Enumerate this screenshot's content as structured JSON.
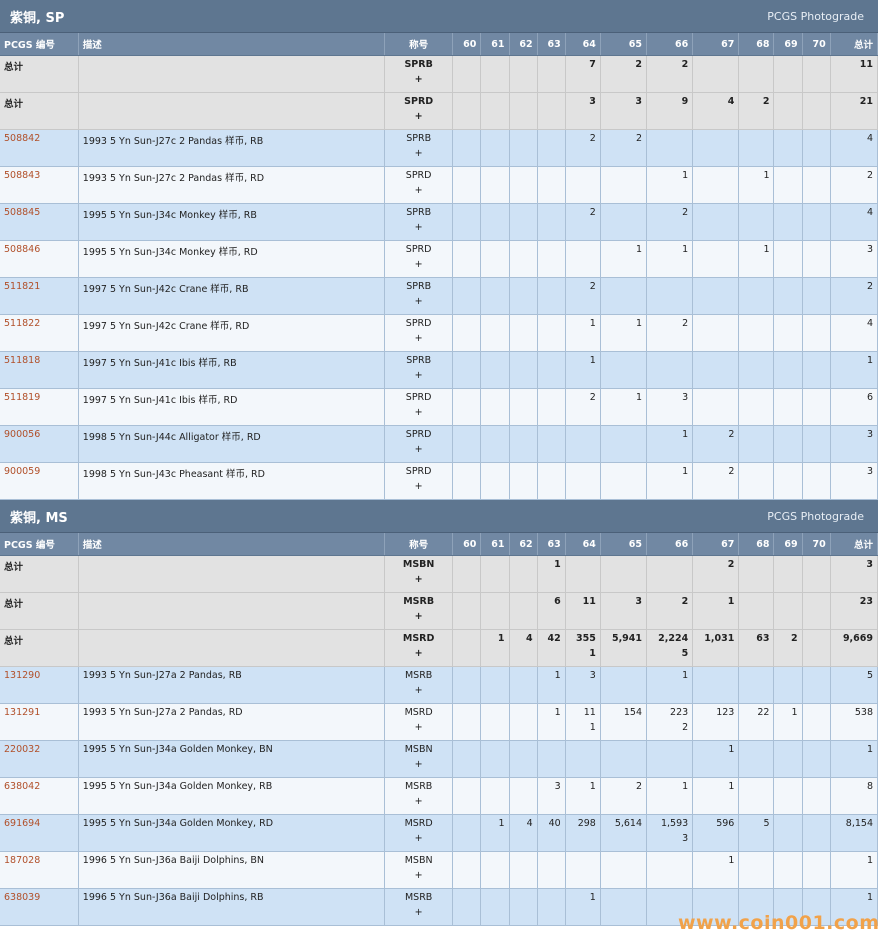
{
  "columns": [
    "PCGS 编号",
    "描述",
    "称号",
    "60",
    "61",
    "62",
    "63",
    "64",
    "65",
    "66",
    "67",
    "68",
    "69",
    "70",
    "总计"
  ],
  "sections": [
    {
      "title": "紫铜, SP",
      "link": "PCGS Photograde",
      "rows": [
        {
          "type": "total",
          "pcgs": "总计",
          "desc": "",
          "grade": "SPRB\n+",
          "v": [
            "",
            "",
            "",
            "",
            "7",
            "2",
            "2",
            "",
            "",
            "",
            "",
            ""
          ],
          "total": "11"
        },
        {
          "type": "total",
          "pcgs": "总计",
          "desc": "",
          "grade": "SPRD\n+",
          "v": [
            "",
            "",
            "",
            "",
            "3",
            "3",
            "9",
            "4",
            "2",
            "",
            "",
            ""
          ],
          "total": "21"
        },
        {
          "type": "alt",
          "pcgs": "508842",
          "desc": "1993 5 Yn Sun-J27c 2 Pandas 样币, RB",
          "grade": "SPRB\n+",
          "v": [
            "",
            "",
            "",
            "",
            "2",
            "2",
            "",
            "",
            "",
            "",
            ""
          ],
          "total": "4"
        },
        {
          "type": "plain",
          "pcgs": "508843",
          "desc": "1993 5 Yn Sun-J27c 2 Pandas 样币, RD",
          "grade": "SPRD\n+",
          "v": [
            "",
            "",
            "",
            "",
            "",
            "",
            "1",
            "",
            "1",
            "",
            ""
          ],
          "total": "2"
        },
        {
          "type": "alt",
          "pcgs": "508845",
          "desc": "1995 5 Yn Sun-J34c Monkey 样币, RB",
          "grade": "SPRB\n+",
          "v": [
            "",
            "",
            "",
            "",
            "2",
            "",
            "2",
            "",
            "",
            "",
            ""
          ],
          "total": "4"
        },
        {
          "type": "plain",
          "pcgs": "508846",
          "desc": "1995 5 Yn Sun-J34c Monkey 样币, RD",
          "grade": "SPRD\n+",
          "v": [
            "",
            "",
            "",
            "",
            "",
            "1",
            "1",
            "",
            "1",
            "",
            ""
          ],
          "total": "3"
        },
        {
          "type": "alt",
          "pcgs": "511821",
          "desc": "1997 5 Yn Sun-J42c Crane 样币, RB",
          "grade": "SPRB\n+",
          "v": [
            "",
            "",
            "",
            "",
            "2",
            "",
            "",
            "",
            "",
            "",
            ""
          ],
          "total": "2"
        },
        {
          "type": "plain",
          "pcgs": "511822",
          "desc": "1997 5 Yn Sun-J42c Crane 样币, RD",
          "grade": "SPRD\n+",
          "v": [
            "",
            "",
            "",
            "",
            "1",
            "1",
            "2",
            "",
            "",
            "",
            ""
          ],
          "total": "4"
        },
        {
          "type": "alt",
          "pcgs": "511818",
          "desc": "1997 5 Yn Sun-J41c Ibis 样币, RB",
          "grade": "SPRB\n+",
          "v": [
            "",
            "",
            "",
            "",
            "1",
            "",
            "",
            "",
            "",
            "",
            ""
          ],
          "total": "1"
        },
        {
          "type": "plain",
          "pcgs": "511819",
          "desc": "1997 5 Yn Sun-J41c Ibis 样币, RD",
          "grade": "SPRD\n+",
          "v": [
            "",
            "",
            "",
            "",
            "2",
            "1",
            "3",
            "",
            "",
            "",
            ""
          ],
          "total": "6"
        },
        {
          "type": "alt",
          "pcgs": "900056",
          "desc": "1998 5 Yn Sun-J44c Alligator 样币, RD",
          "grade": "SPRD\n+",
          "v": [
            "",
            "",
            "",
            "",
            "",
            "",
            "1",
            "2",
            "",
            "",
            ""
          ],
          "total": "3"
        },
        {
          "type": "plain",
          "pcgs": "900059",
          "desc": "1998 5 Yn Sun-J43c Pheasant 样币, RD",
          "grade": "SPRD\n+",
          "v": [
            "",
            "",
            "",
            "",
            "",
            "",
            "1",
            "2",
            "",
            "",
            ""
          ],
          "total": "3"
        }
      ]
    },
    {
      "title": "紫铜, MS",
      "link": "PCGS Photograde",
      "rows": [
        {
          "type": "total",
          "pcgs": "总计",
          "desc": "",
          "grade": "MSBN\n+",
          "v": [
            "",
            "",
            "",
            "1",
            "",
            "",
            "",
            "2",
            "",
            "",
            ""
          ],
          "total": "3"
        },
        {
          "type": "total",
          "pcgs": "总计",
          "desc": "",
          "grade": "MSRB\n+",
          "v": [
            "",
            "",
            "",
            "6",
            "11",
            "3",
            "2",
            "1",
            "",
            "",
            ""
          ],
          "total": "23"
        },
        {
          "type": "total",
          "pcgs": "总计",
          "desc": "",
          "grade": "MSRD\n+",
          "v": [
            "",
            "1",
            "4",
            "42",
            "355\n1",
            "5,941",
            "2,224\n5",
            "1,031",
            "63",
            "2",
            ""
          ],
          "total": "9,669"
        },
        {
          "type": "alt",
          "pcgs": "131290",
          "desc": "1993 5 Yn Sun-J27a 2 Pandas, RB",
          "grade": "MSRB\n+",
          "v": [
            "",
            "",
            "",
            "1",
            "3",
            "",
            "1",
            "",
            "",
            "",
            ""
          ],
          "total": "5"
        },
        {
          "type": "plain",
          "pcgs": "131291",
          "desc": "1993 5 Yn Sun-J27a 2 Pandas, RD",
          "grade": "MSRD\n+",
          "v": [
            "",
            "",
            "",
            "1",
            "11\n1",
            "154",
            "223\n2",
            "123",
            "22",
            "1",
            ""
          ],
          "total": "538"
        },
        {
          "type": "alt",
          "pcgs": "220032",
          "desc": "1995 5 Yn Sun-J34a Golden Monkey, BN",
          "grade": "MSBN\n+",
          "v": [
            "",
            "",
            "",
            "",
            "",
            "",
            "",
            "1",
            "",
            "",
            ""
          ],
          "total": "1"
        },
        {
          "type": "plain",
          "pcgs": "638042",
          "desc": "1995 5 Yn Sun-J34a Golden Monkey, RB",
          "grade": "MSRB\n+",
          "v": [
            "",
            "",
            "",
            "3",
            "1",
            "2",
            "1",
            "1",
            "",
            "",
            ""
          ],
          "total": "8"
        },
        {
          "type": "alt",
          "pcgs": "691694",
          "desc": "1995 5 Yn Sun-J34a Golden Monkey, RD",
          "grade": "MSRD\n+",
          "v": [
            "",
            "1",
            "4",
            "40",
            "298",
            "5,614",
            "1,593\n3",
            "596",
            "5",
            "",
            ""
          ],
          "total": "8,154"
        },
        {
          "type": "plain",
          "pcgs": "187028",
          "desc": "1996 5 Yn Sun-J36a Baiji Dolphins, BN",
          "grade": "MSBN\n+",
          "v": [
            "",
            "",
            "",
            "",
            "",
            "",
            "",
            "1",
            "",
            "",
            ""
          ],
          "total": "1"
        },
        {
          "type": "alt",
          "pcgs": "638039",
          "desc": "1996 5 Yn Sun-J36a Baiji Dolphins, RB",
          "grade": "MSRB\n+",
          "v": [
            "",
            "",
            "",
            "",
            "1",
            "",
            "",
            "",
            "",
            "",
            ""
          ],
          "total": "1"
        }
      ]
    }
  ],
  "watermark": "www.coin001.com"
}
